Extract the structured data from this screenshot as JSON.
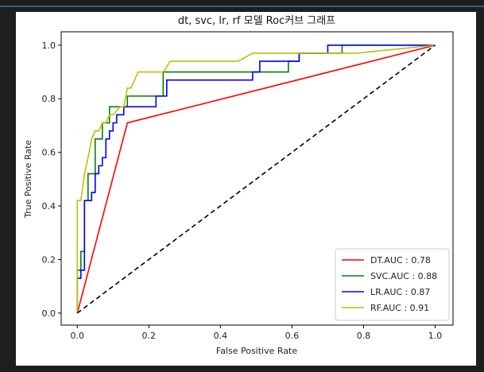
{
  "chart_data": {
    "type": "line",
    "title": "dt, svc, lr, rf 모델 Roc커브 그래프",
    "xlabel": "False Positive Rate",
    "ylabel": "True Positive Rate",
    "xlim": [
      -0.045,
      1.05
    ],
    "ylim": [
      -0.045,
      1.05
    ],
    "x_ticks": [
      "0.0",
      "0.2",
      "0.4",
      "0.6",
      "0.8",
      "1.0"
    ],
    "y_ticks": [
      "0.0",
      "0.2",
      "0.4",
      "0.6",
      "0.8",
      "1.0"
    ],
    "x_tick_values": [
      0.0,
      0.2,
      0.4,
      0.6,
      0.8,
      1.0
    ],
    "y_tick_values": [
      0.0,
      0.2,
      0.4,
      0.6,
      0.8,
      1.0
    ],
    "legend_position": "bottom-right",
    "grid": false,
    "series": [
      {
        "name": "DT.AUC : 0.78",
        "color": "#ff0000",
        "dash": "solid",
        "x": [
          0.0,
          0.14,
          1.0
        ],
        "y": [
          0.0,
          0.71,
          1.0
        ]
      },
      {
        "name": "SVC.AUC : 0.88",
        "color": "#008000",
        "dash": "solid",
        "x": [
          0.0,
          0.0,
          0.01,
          0.01,
          0.02,
          0.02,
          0.03,
          0.03,
          0.05,
          0.05,
          0.07,
          0.07,
          0.09,
          0.09,
          0.14,
          0.14,
          0.24,
          0.24,
          0.59,
          0.59,
          0.62,
          0.62,
          0.74,
          0.74,
          1.0
        ],
        "y": [
          0.0,
          0.16,
          0.16,
          0.23,
          0.23,
          0.42,
          0.42,
          0.52,
          0.52,
          0.65,
          0.65,
          0.71,
          0.71,
          0.77,
          0.77,
          0.81,
          0.81,
          0.9,
          0.9,
          0.94,
          0.94,
          0.97,
          0.97,
          1.0,
          1.0
        ]
      },
      {
        "name": "LR.AUC : 0.87",
        "color": "#0000ff",
        "dash": "solid",
        "x": [
          0.0,
          0.0,
          0.01,
          0.01,
          0.02,
          0.02,
          0.04,
          0.04,
          0.05,
          0.05,
          0.06,
          0.06,
          0.07,
          0.07,
          0.08,
          0.08,
          0.09,
          0.09,
          0.1,
          0.1,
          0.11,
          0.11,
          0.13,
          0.13,
          0.22,
          0.22,
          0.25,
          0.25,
          0.49,
          0.49,
          0.51,
          0.51,
          0.54,
          0.54,
          0.62,
          0.62,
          0.7,
          0.7,
          1.0
        ],
        "y": [
          0.0,
          0.13,
          0.13,
          0.16,
          0.16,
          0.42,
          0.42,
          0.45,
          0.45,
          0.52,
          0.52,
          0.55,
          0.55,
          0.58,
          0.58,
          0.65,
          0.65,
          0.68,
          0.68,
          0.71,
          0.71,
          0.74,
          0.74,
          0.77,
          0.77,
          0.81,
          0.81,
          0.87,
          0.87,
          0.9,
          0.9,
          0.94,
          0.94,
          0.94,
          0.94,
          0.97,
          0.97,
          1.0,
          1.0
        ]
      },
      {
        "name": "RF.AUC : 0.91",
        "color": "#bfbf00",
        "dash": "solid",
        "x": [
          0.0,
          0.0,
          0.01,
          0.02,
          0.03,
          0.04,
          0.05,
          0.06,
          0.07,
          0.08,
          0.09,
          0.1,
          0.12,
          0.13,
          0.14,
          0.15,
          0.17,
          0.24,
          0.26,
          0.45,
          0.49,
          0.78,
          1.0
        ],
        "y": [
          0.0,
          0.42,
          0.42,
          0.52,
          0.58,
          0.65,
          0.68,
          0.68,
          0.71,
          0.71,
          0.74,
          0.74,
          0.77,
          0.77,
          0.84,
          0.84,
          0.9,
          0.9,
          0.94,
          0.94,
          0.97,
          0.97,
          1.0
        ]
      },
      {
        "color": "#000000",
        "dash": "dashed",
        "x": [
          0.0,
          1.0
        ],
        "y": [
          0.0,
          1.0
        ]
      }
    ]
  }
}
